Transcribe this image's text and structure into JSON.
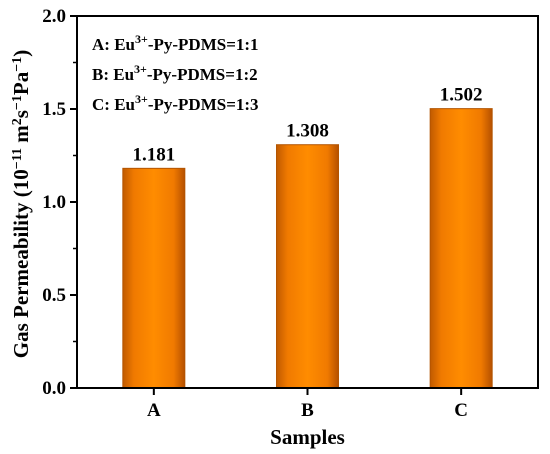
{
  "chart_data": {
    "type": "bar",
    "categories": [
      "A",
      "B",
      "C"
    ],
    "values": [
      1.181,
      1.308,
      1.502
    ],
    "value_labels": [
      "1.181",
      "1.308",
      "1.502"
    ],
    "xlabel": "Samples",
    "ylabel_parts": [
      "Gas Permeability (10",
      "−11",
      " m",
      "2",
      "s",
      "−1",
      "Pa",
      "−1",
      ")"
    ],
    "ylim": [
      0,
      2.0
    ],
    "yticks": [
      0.0,
      0.5,
      1.0,
      1.5,
      2.0
    ],
    "ytick_labels": [
      "0.0",
      "0.5",
      "1.0",
      "1.5",
      "2.0"
    ],
    "legend": [
      {
        "prefix": "A: Eu",
        "sup": "3+",
        "suffix": "-Py-PDMS=1:1"
      },
      {
        "prefix": "B: Eu",
        "sup": "3+",
        "suffix": "-Py-PDMS=1:2"
      },
      {
        "prefix": "C: Eu",
        "sup": "3+",
        "suffix": "-Py-PDMS=1:3"
      }
    ],
    "legend_position": "top-left",
    "grid": false,
    "bar_color": "#FF8000",
    "bar_edge_color": "#B35400"
  }
}
